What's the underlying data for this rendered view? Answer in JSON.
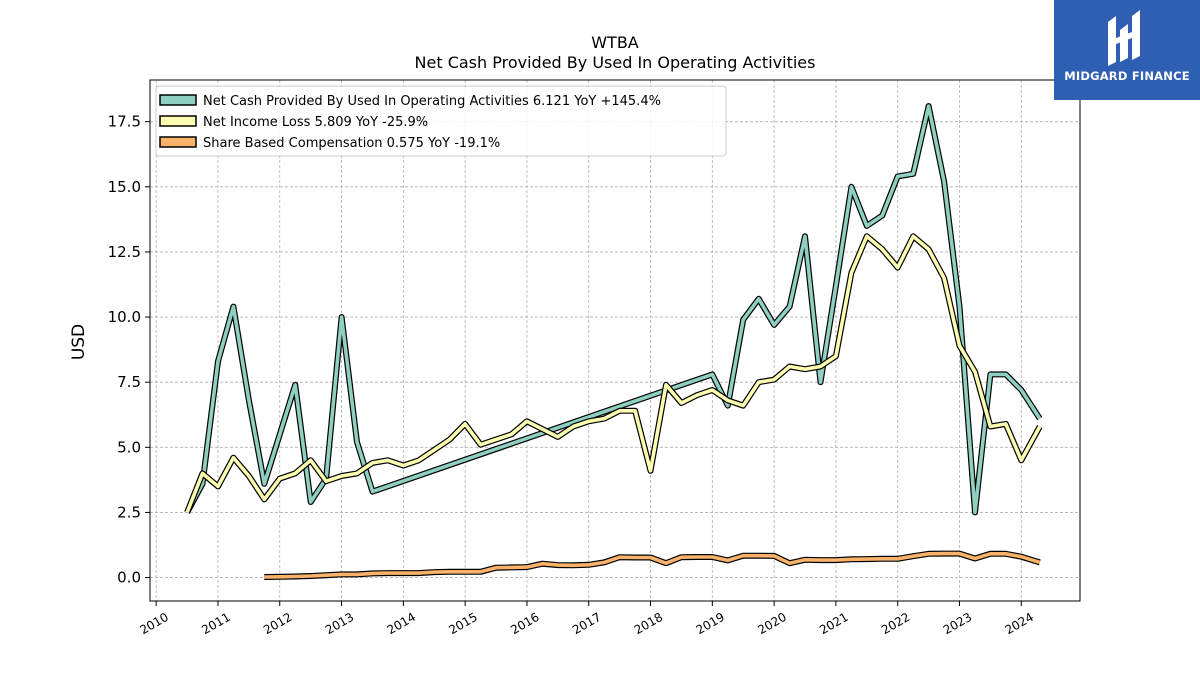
{
  "chart_data": {
    "type": "line",
    "title": "WTBA",
    "subtitle": "Net Cash Provided By Used In Operating Activities",
    "ylabel": "USD",
    "xlabel": "",
    "ylim": [
      -0.9,
      19.1
    ],
    "xlim": [
      2009.9,
      2024.95
    ],
    "yticks": [
      "0.0",
      "2.5",
      "5.0",
      "7.5",
      "10.0",
      "12.5",
      "15.0",
      "17.5"
    ],
    "xticks": [
      "2010",
      "2011",
      "2012",
      "2013",
      "2014",
      "2015",
      "2016",
      "2017",
      "2018",
      "2019",
      "2020",
      "2021",
      "2022",
      "2023",
      "2024"
    ],
    "grid": true,
    "legend_position": "top-left",
    "series": [
      {
        "name": "Net Cash Provided By Used In Operating Activities",
        "legend": "Net Cash Provided By Used In Operating Activities  6.121 YoY +145.4%",
        "color": "#8ecfc2",
        "x": [
          2010.5,
          2010.75,
          2011.0,
          2011.25,
          2011.5,
          2011.75,
          2012.0,
          2012.25,
          2012.5,
          2012.75,
          2013.0,
          2013.25,
          2013.5,
          2019.0,
          2019.25,
          2019.5,
          2019.75,
          2020.0,
          2020.25,
          2020.5,
          2020.75,
          2021.0,
          2021.25,
          2021.5,
          2021.75,
          2022.0,
          2022.25,
          2022.5,
          2022.75,
          2023.0,
          2023.25,
          2023.5,
          2023.75,
          2024.0,
          2024.3
        ],
        "values": [
          2.5,
          3.6,
          8.3,
          10.4,
          6.8,
          3.6,
          5.5,
          7.4,
          2.9,
          3.8,
          10.0,
          5.2,
          3.3,
          7.8,
          6.6,
          9.9,
          10.7,
          9.7,
          10.4,
          13.1,
          7.5,
          11.2,
          15.0,
          13.5,
          13.9,
          15.4,
          15.5,
          18.1,
          15.2,
          10.4,
          2.5,
          7.8,
          7.8,
          7.2,
          6.1
        ]
      },
      {
        "name": "Net Income Loss",
        "legend": "Net Income Loss  5.809 YoY -25.9%",
        "color": "#fdfdb2",
        "x": [
          2010.5,
          2010.75,
          2011.0,
          2011.25,
          2011.5,
          2011.75,
          2012.0,
          2012.25,
          2012.5,
          2012.75,
          2013.0,
          2013.25,
          2013.5,
          2013.75,
          2014.0,
          2014.25,
          2014.5,
          2014.75,
          2015.0,
          2015.25,
          2015.5,
          2015.75,
          2016.0,
          2016.25,
          2016.5,
          2016.75,
          2017.0,
          2017.25,
          2017.5,
          2017.75,
          2018.0,
          2018.25,
          2018.5,
          2018.75,
          2019.0,
          2019.25,
          2019.5,
          2019.75,
          2020.0,
          2020.25,
          2020.5,
          2020.75,
          2021.0,
          2021.25,
          2021.5,
          2021.75,
          2022.0,
          2022.25,
          2022.5,
          2022.75,
          2023.0,
          2023.25,
          2023.5,
          2023.75,
          2024.0,
          2024.3
        ],
        "values": [
          2.5,
          4.0,
          3.5,
          4.6,
          3.9,
          3.0,
          3.8,
          4.0,
          4.5,
          3.7,
          3.9,
          4.0,
          4.4,
          4.5,
          4.3,
          4.5,
          4.9,
          5.3,
          5.9,
          5.1,
          5.3,
          5.5,
          6.0,
          5.7,
          5.4,
          5.8,
          6.0,
          6.1,
          6.4,
          6.4,
          4.1,
          7.4,
          6.7,
          7.0,
          7.2,
          6.8,
          6.6,
          7.5,
          7.6,
          8.1,
          8.0,
          8.1,
          8.5,
          11.7,
          13.1,
          12.6,
          11.9,
          13.1,
          12.6,
          11.5,
          8.9,
          7.9,
          5.8,
          5.9,
          4.5,
          5.8
        ]
      },
      {
        "name": "Share Based Compensation",
        "legend": "Share Based Compensation  0.575 YoY -19.1%",
        "color": "#f8b26a",
        "x": [
          2011.75,
          2012.0,
          2012.25,
          2012.5,
          2012.75,
          2013.0,
          2013.25,
          2013.5,
          2013.75,
          2014.0,
          2014.25,
          2014.5,
          2014.75,
          2015.0,
          2015.25,
          2015.5,
          2015.75,
          2016.0,
          2016.25,
          2016.5,
          2016.75,
          2017.0,
          2017.25,
          2017.5,
          2017.75,
          2018.0,
          2018.25,
          2018.5,
          2018.75,
          2019.0,
          2019.25,
          2019.5,
          2019.75,
          2020.0,
          2020.25,
          2020.5,
          2020.75,
          2021.0,
          2021.25,
          2021.5,
          2021.75,
          2022.0,
          2022.25,
          2022.5,
          2022.75,
          2023.0,
          2023.25,
          2023.5,
          2023.75,
          2024.0,
          2024.3
        ],
        "values": [
          0.02,
          0.03,
          0.04,
          0.06,
          0.09,
          0.12,
          0.12,
          0.16,
          0.17,
          0.17,
          0.17,
          0.21,
          0.22,
          0.22,
          0.22,
          0.38,
          0.39,
          0.4,
          0.53,
          0.48,
          0.47,
          0.49,
          0.58,
          0.78,
          0.77,
          0.77,
          0.55,
          0.78,
          0.79,
          0.79,
          0.66,
          0.84,
          0.84,
          0.83,
          0.55,
          0.68,
          0.67,
          0.67,
          0.7,
          0.71,
          0.72,
          0.72,
          0.82,
          0.91,
          0.92,
          0.92,
          0.73,
          0.91,
          0.91,
          0.8,
          0.58
        ]
      }
    ]
  },
  "branding": {
    "logo_text": "MIDGARD FINANCE",
    "background": "#2f5fb3"
  }
}
